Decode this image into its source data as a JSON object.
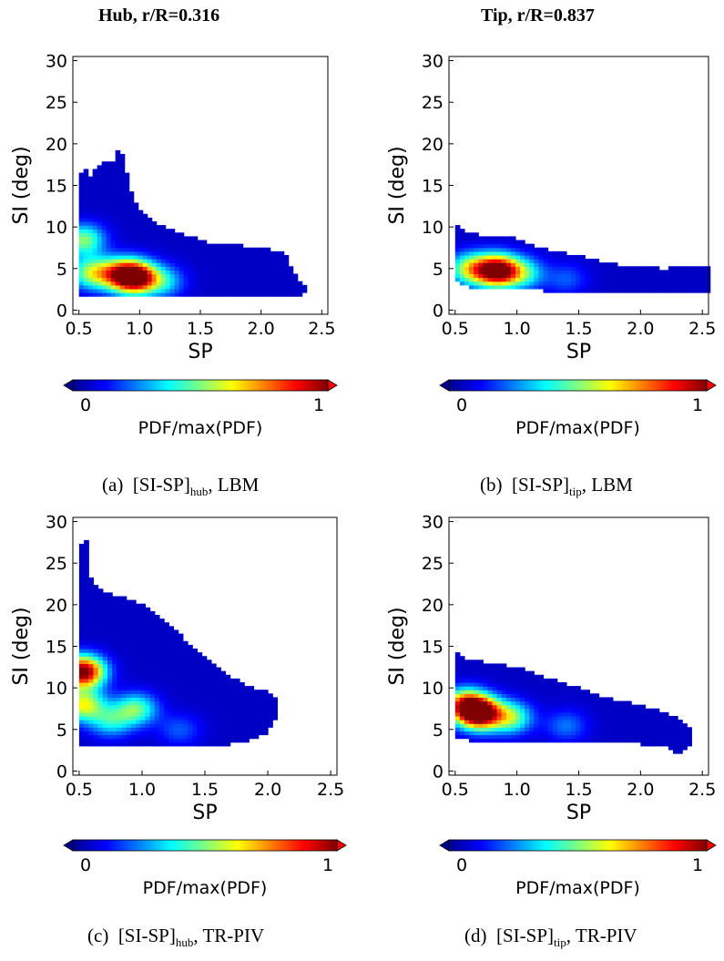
{
  "column_titles": [
    "Hub, r/R=0.316",
    "Tip, r/R=0.837"
  ],
  "captions": [
    {
      "tag": "(a)",
      "pre": "[SI-SP]",
      "sub": "hub",
      "post": ", LBM"
    },
    {
      "tag": "(b)",
      "pre": "[SI-SP]",
      "sub": "tip",
      "post": ", LBM"
    },
    {
      "tag": "(c)",
      "pre": "[SI-SP]",
      "sub": "hub",
      "post": ", TR-PIV"
    },
    {
      "tag": "(d)",
      "pre": "[SI-SP]",
      "sub": "tip",
      "post": ", TR-PIV"
    }
  ],
  "colors": {
    "colormap": [
      "#00008f",
      "#0000ff",
      "#007fff",
      "#00ffff",
      "#7fff7f",
      "#ffff00",
      "#ff7f00",
      "#ff0000",
      "#7f0000"
    ],
    "extend_low": "#00008f",
    "extend_high": "#ff0000"
  },
  "chart_data": [
    {
      "type": "heatmap",
      "xlabel": "SP",
      "ylabel": "SI (deg)",
      "xlim": [
        0.45,
        2.55
      ],
      "ylim": [
        -0.5,
        30.5
      ],
      "xticks": [
        "0.5",
        "1.0",
        "1.5",
        "2.0",
        "2.5"
      ],
      "yticks": [
        "0",
        "5",
        "10",
        "15",
        "20",
        "25",
        "30"
      ],
      "colorbar": {
        "label": "PDF/max(PDF)",
        "min": "0",
        "max": "1"
      },
      "support_outline": [
        [
          0.5,
          16.5
        ],
        [
          0.55,
          17.0
        ],
        [
          0.6,
          16.0
        ],
        [
          0.65,
          17.5
        ],
        [
          0.72,
          18.0
        ],
        [
          0.78,
          18.0
        ],
        [
          0.82,
          19.2
        ],
        [
          0.88,
          18.5
        ],
        [
          0.9,
          15.5
        ],
        [
          1.0,
          12.0
        ],
        [
          1.2,
          10.0
        ],
        [
          1.4,
          9.0
        ],
        [
          1.6,
          8.0
        ],
        [
          1.8,
          7.8
        ],
        [
          2.0,
          7.5
        ],
        [
          2.1,
          7.2
        ],
        [
          2.2,
          7.0
        ],
        [
          2.22,
          6.0
        ],
        [
          2.3,
          4.0
        ],
        [
          2.38,
          2.5
        ],
        [
          2.3,
          1.5
        ],
        [
          1.9,
          1.5
        ],
        [
          1.5,
          1.5
        ],
        [
          1.0,
          1.5
        ],
        [
          0.6,
          1.5
        ],
        [
          0.5,
          1.5
        ]
      ],
      "peaks": [
        {
          "x": 0.97,
          "y": 4.0,
          "pdf": 1.0
        },
        {
          "x": 0.82,
          "y": 4.4,
          "pdf": 0.55
        },
        {
          "x": 0.54,
          "y": 8.5,
          "pdf": 0.45
        },
        {
          "x": 0.6,
          "y": 4.5,
          "pdf": 0.45
        },
        {
          "x": 1.2,
          "y": 3.5,
          "pdf": 0.28
        }
      ]
    },
    {
      "type": "heatmap",
      "xlabel": "SP",
      "ylabel": "SI (deg)",
      "xlim": [
        0.45,
        2.55
      ],
      "ylim": [
        -0.5,
        30.5
      ],
      "xticks": [
        "0.5",
        "1.0",
        "1.5",
        "2.0",
        "2.5"
      ],
      "yticks": [
        "0",
        "5",
        "10",
        "15",
        "20",
        "25",
        "30"
      ],
      "colorbar": {
        "label": "PDF/max(PDF)",
        "min": "0",
        "max": "1"
      },
      "support_outline": [
        [
          0.5,
          10.5
        ],
        [
          0.58,
          9.5
        ],
        [
          0.7,
          9.0
        ],
        [
          0.9,
          9.0
        ],
        [
          1.0,
          8.5
        ],
        [
          1.2,
          7.5
        ],
        [
          1.4,
          6.8
        ],
        [
          1.6,
          6.2
        ],
        [
          1.8,
          5.5
        ],
        [
          2.0,
          5.2
        ],
        [
          2.2,
          5.0
        ],
        [
          2.25,
          5.2
        ],
        [
          2.55,
          5.2
        ],
        [
          2.55,
          2.0
        ],
        [
          2.2,
          2.0
        ],
        [
          1.8,
          2.0
        ],
        [
          1.4,
          2.2
        ],
        [
          1.0,
          2.5
        ],
        [
          0.7,
          2.5
        ],
        [
          0.55,
          3.0
        ],
        [
          0.5,
          4.0
        ]
      ],
      "peaks": [
        {
          "x": 0.84,
          "y": 4.8,
          "pdf": 1.0
        },
        {
          "x": 0.62,
          "y": 5.0,
          "pdf": 0.5
        },
        {
          "x": 1.05,
          "y": 4.5,
          "pdf": 0.35
        },
        {
          "x": 1.4,
          "y": 3.8,
          "pdf": 0.15
        }
      ]
    },
    {
      "type": "heatmap",
      "xlabel": "SP",
      "ylabel": "SI (deg)",
      "xlim": [
        0.45,
        2.55
      ],
      "ylim": [
        -0.5,
        30.5
      ],
      "xticks": [
        "0.5",
        "1.0",
        "1.5",
        "2.0",
        "2.5"
      ],
      "yticks": [
        "0",
        "5",
        "10",
        "15",
        "20",
        "25",
        "30"
      ],
      "colorbar": {
        "label": "PDF/max(PDF)",
        "min": "0",
        "max": "1"
      },
      "support_outline": [
        [
          0.5,
          26.5
        ],
        [
          0.55,
          28.5
        ],
        [
          0.6,
          22.5
        ],
        [
          0.7,
          21.5
        ],
        [
          0.85,
          21.0
        ],
        [
          1.0,
          20.0
        ],
        [
          1.2,
          18.0
        ],
        [
          1.4,
          15.0
        ],
        [
          1.6,
          12.5
        ],
        [
          1.8,
          10.5
        ],
        [
          2.0,
          9.5
        ],
        [
          2.1,
          8.0
        ],
        [
          2.05,
          6.0
        ],
        [
          2.0,
          4.5
        ],
        [
          1.8,
          3.5
        ],
        [
          1.6,
          3.0
        ],
        [
          1.4,
          3.0
        ],
        [
          1.0,
          3.0
        ],
        [
          0.6,
          3.0
        ],
        [
          0.5,
          3.0
        ]
      ],
      "peaks": [
        {
          "x": 0.53,
          "y": 12.0,
          "pdf": 1.0
        },
        {
          "x": 0.53,
          "y": 8.0,
          "pdf": 0.55
        },
        {
          "x": 0.95,
          "y": 7.5,
          "pdf": 0.42
        },
        {
          "x": 0.75,
          "y": 6.0,
          "pdf": 0.3
        },
        {
          "x": 1.3,
          "y": 5.0,
          "pdf": 0.15
        }
      ]
    },
    {
      "type": "heatmap",
      "xlabel": "SP",
      "ylabel": "SI (deg)",
      "xlim": [
        0.45,
        2.55
      ],
      "ylim": [
        -0.5,
        30.5
      ],
      "xticks": [
        "0.5",
        "1.0",
        "1.5",
        "2.0",
        "2.5"
      ],
      "yticks": [
        "0",
        "5",
        "10",
        "15",
        "20",
        "25",
        "30"
      ],
      "colorbar": {
        "label": "PDF/max(PDF)",
        "min": "0",
        "max": "1"
      },
      "support_outline": [
        [
          0.5,
          14.5
        ],
        [
          0.6,
          13.5
        ],
        [
          0.8,
          13.0
        ],
        [
          1.0,
          12.5
        ],
        [
          1.2,
          11.5
        ],
        [
          1.4,
          10.5
        ],
        [
          1.6,
          9.5
        ],
        [
          1.8,
          8.5
        ],
        [
          2.0,
          8.0
        ],
        [
          2.2,
          7.0
        ],
        [
          2.3,
          6.5
        ],
        [
          2.4,
          5.0
        ],
        [
          2.42,
          3.5
        ],
        [
          2.3,
          2.0
        ],
        [
          2.2,
          3.0
        ],
        [
          1.8,
          3.5
        ],
        [
          1.4,
          3.5
        ],
        [
          1.0,
          3.5
        ],
        [
          0.7,
          3.5
        ],
        [
          0.5,
          4.0
        ]
      ],
      "peaks": [
        {
          "x": 0.7,
          "y": 7.0,
          "pdf": 1.0
        },
        {
          "x": 0.58,
          "y": 8.0,
          "pdf": 0.7
        },
        {
          "x": 0.95,
          "y": 6.5,
          "pdf": 0.45
        },
        {
          "x": 1.4,
          "y": 5.5,
          "pdf": 0.18
        }
      ]
    }
  ]
}
